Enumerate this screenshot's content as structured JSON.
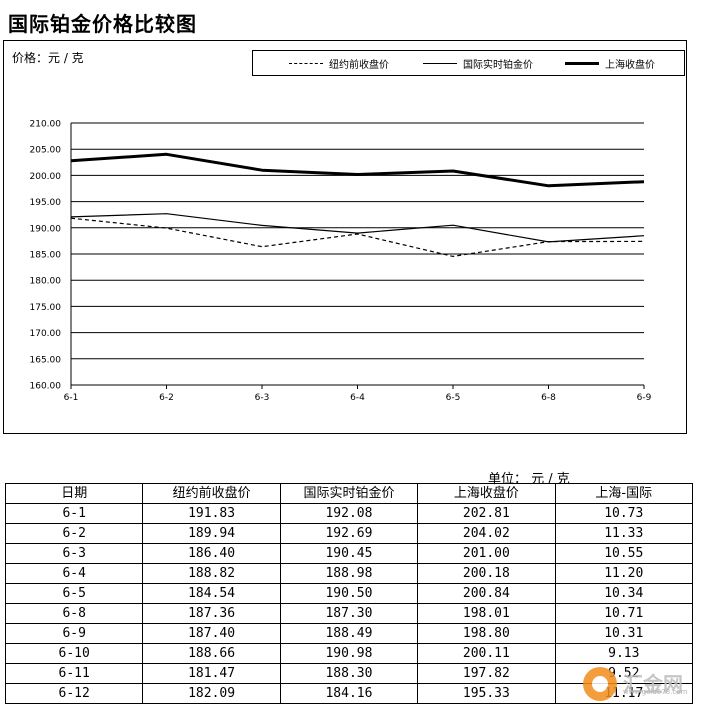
{
  "page": {
    "title": "国际铂金价格比较图"
  },
  "chart_data": {
    "type": "line",
    "ylabel": "价格：元 / 克",
    "categories": [
      "6-1",
      "6-2",
      "6-3",
      "6-4",
      "6-5",
      "6-8",
      "6-9"
    ],
    "ylim": [
      160,
      210
    ],
    "yticks": [
      "210.00",
      "205.00",
      "200.00",
      "195.00",
      "190.00",
      "185.00",
      "180.00",
      "175.00",
      "170.00",
      "165.00",
      "160.00"
    ],
    "grid": true,
    "legend_position": "top",
    "series": [
      {
        "name": "纽约前收盘价",
        "style": "dashed",
        "color": "#000000",
        "values": [
          191.83,
          189.94,
          186.4,
          188.82,
          184.54,
          187.36,
          187.4
        ]
      },
      {
        "name": "国际实时铂金价",
        "style": "thin",
        "color": "#000000",
        "values": [
          192.08,
          192.69,
          190.45,
          188.98,
          190.5,
          187.3,
          188.49
        ]
      },
      {
        "name": "上海收盘价",
        "style": "thick",
        "color": "#000000",
        "values": [
          202.81,
          204.02,
          201.0,
          200.18,
          200.84,
          198.01,
          198.8
        ]
      }
    ]
  },
  "table": {
    "unit": "单位：  元 / 克",
    "headers": [
      "日期",
      "纽约前收盘价",
      "国际实时铂金价",
      "上海收盘价",
      "上海-国际"
    ],
    "rows": [
      [
        "6-1",
        "191.83",
        "192.08",
        "202.81",
        "10.73"
      ],
      [
        "6-2",
        "189.94",
        "192.69",
        "204.02",
        "11.33"
      ],
      [
        "6-3",
        "186.40",
        "190.45",
        "201.00",
        "10.55"
      ],
      [
        "6-4",
        "188.82",
        "188.98",
        "200.18",
        "11.20"
      ],
      [
        "6-5",
        "184.54",
        "190.50",
        "200.84",
        "10.34"
      ],
      [
        "6-8",
        "187.36",
        "187.30",
        "198.01",
        "10.71"
      ],
      [
        "6-9",
        "187.40",
        "188.49",
        "198.80",
        "10.31"
      ],
      [
        "6-10",
        "188.66",
        "190.98",
        "200.11",
        "9.13"
      ],
      [
        "6-11",
        "181.47",
        "188.30",
        "197.82",
        "9.52"
      ],
      [
        "6-12",
        "182.09",
        "184.16",
        "195.33",
        "11.17"
      ]
    ]
  },
  "watermark": {
    "text": "汇金网",
    "sub": "www.gold678.com"
  }
}
